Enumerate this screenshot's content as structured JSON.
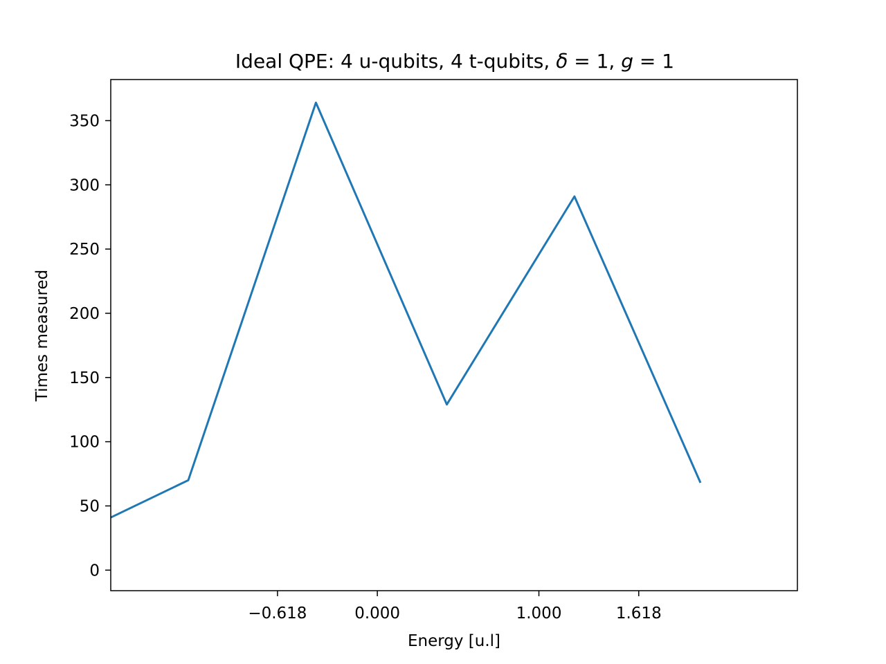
{
  "chart_data": {
    "type": "line",
    "title_parts": {
      "text": "Ideal QPE: 4 u-qubits, 4 t-qubits, ",
      "delta": "δ",
      "g": "g",
      "eq": " = 1"
    },
    "title": "Ideal QPE: 4 u-qubits, 4 t-qubits, δ = 1, g = 1",
    "xlabel": "Energy [u.l]",
    "ylabel": "Times measured",
    "xlim": [
      -1.65,
      2.6
    ],
    "ylim": [
      -16,
      382
    ],
    "x_ticks": [
      -0.618,
      0.0,
      1.0,
      1.618
    ],
    "x_tick_labels": [
      "−0.618",
      "0.000",
      "1.000",
      "1.618"
    ],
    "y_ticks": [
      0,
      50,
      100,
      150,
      200,
      250,
      300,
      350
    ],
    "y_tick_labels": [
      "0",
      "50",
      "100",
      "150",
      "200",
      "250",
      "300",
      "350"
    ],
    "grid": false,
    "series": [
      {
        "color": "#1f77b4",
        "x": [
          -1.65,
          -1.17,
          -0.38,
          0.43,
          1.22,
          2.0
        ],
        "y": [
          41,
          70,
          364,
          129,
          291,
          68
        ]
      }
    ]
  }
}
